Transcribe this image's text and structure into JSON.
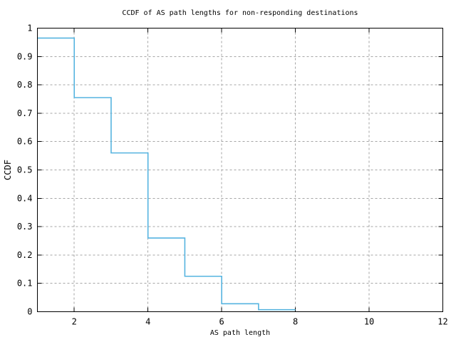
{
  "chart_data": {
    "type": "line",
    "style": "step-post",
    "title": "CCDF of AS path lengths for non-responding destinations",
    "xlabel": "AS path length",
    "ylabel": "CCDF",
    "xlim": [
      1,
      12
    ],
    "ylim": [
      0,
      1
    ],
    "grid": "dashed-gray-at-ticks",
    "legend": "none",
    "line_color": "#56b4e0",
    "grid_color": "#a6a6a6",
    "axis_color": "#000000",
    "background_color": "#ffffff",
    "xticks": {
      "values": [
        2,
        4,
        6,
        8,
        10,
        12
      ],
      "labels": [
        "2",
        "4",
        "6",
        "8",
        "10",
        "12"
      ]
    },
    "yticks": {
      "values": [
        0,
        0.1,
        0.2,
        0.3,
        0.4,
        0.5,
        0.6,
        0.7,
        0.8,
        0.9,
        1
      ],
      "labels": [
        "0",
        "0.1",
        "0.2",
        "0.3",
        "0.4",
        "0.5",
        "0.6",
        "0.7",
        "0.8",
        "0.9",
        "1"
      ]
    },
    "steps": [
      {
        "x": 1,
        "ccdf": 0.965
      },
      {
        "x": 2,
        "ccdf": 0.755
      },
      {
        "x": 3,
        "ccdf": 0.56
      },
      {
        "x": 4,
        "ccdf": 0.26
      },
      {
        "x": 5,
        "ccdf": 0.125
      },
      {
        "x": 6,
        "ccdf": 0.028
      },
      {
        "x": 7,
        "ccdf": 0.007
      }
    ],
    "x_end": 8
  }
}
